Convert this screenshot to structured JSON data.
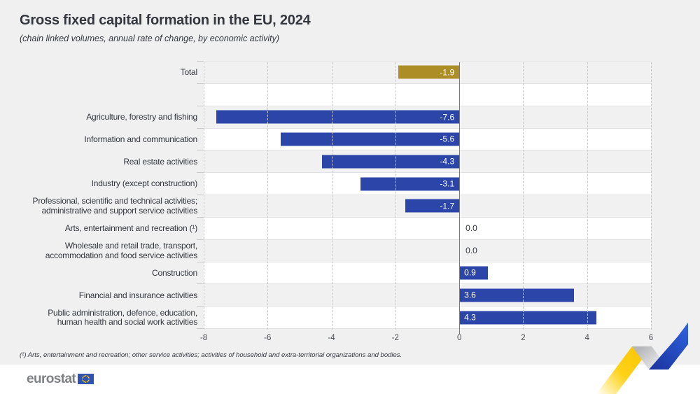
{
  "header": {
    "title": "Gross fixed capital formation in the EU, 2024",
    "subtitle": "(chain linked volumes, annual rate of change, by economic activity)"
  },
  "chart_data": {
    "type": "bar",
    "orientation": "horizontal",
    "title": "Gross fixed capital formation in the EU, 2024",
    "subtitle": "(chain linked volumes, annual rate of change, by economic activity)",
    "xlim": [
      -8,
      6
    ],
    "xticks": [
      -8,
      -6,
      -4,
      -2,
      0,
      2,
      4,
      6
    ],
    "grid": "dashed-vertical",
    "legend": "none",
    "rows": [
      {
        "label": "Total",
        "value": -1.9,
        "color": "gold"
      },
      {
        "label": "",
        "value": null,
        "spacer": true
      },
      {
        "label": "Agriculture, forestry and fishing",
        "value": -7.6
      },
      {
        "label": "Information and communication",
        "value": -5.6
      },
      {
        "label": "Real estate activities",
        "value": -4.3
      },
      {
        "label": "Industry (except construction)",
        "value": -3.1
      },
      {
        "label": "Professional, scientific and technical activities; administrative and support service activities",
        "label_lines": [
          "Professional, scientific and technical activities;",
          "administrative and support service activities"
        ],
        "value": -1.7
      },
      {
        "label": "Arts, entertainment and recreation (¹)",
        "value": 0.0
      },
      {
        "label": "Wholesale and retail trade, transport, accommodation and food service activities",
        "label_lines": [
          "Wholesale and retail trade, transport,",
          "accommodation and food service activities"
        ],
        "value": 0.0
      },
      {
        "label": "Construction",
        "value": 0.9
      },
      {
        "label": "Financial and insurance activities",
        "value": 3.6
      },
      {
        "label": "Public administration, defence, education, human health and social work activities",
        "label_lines": [
          "Public administration, defence, education,",
          "human health and social work activities"
        ],
        "value": 4.3
      }
    ]
  },
  "colors": {
    "bar_blue": "#2B46A8",
    "bar_gold": "#AD8E26",
    "zero_line": "#77787A",
    "row_stripe": "#F1F1F2",
    "eu_flag_blue": "#2E53B4",
    "eu_star_yellow": "#FFD21E"
  },
  "footnote": "(¹) Arts, entertainment and recreation; other service activities; activities of household and extra-territorial organizations and bodies.",
  "footer": {
    "brand": "eurostat"
  }
}
